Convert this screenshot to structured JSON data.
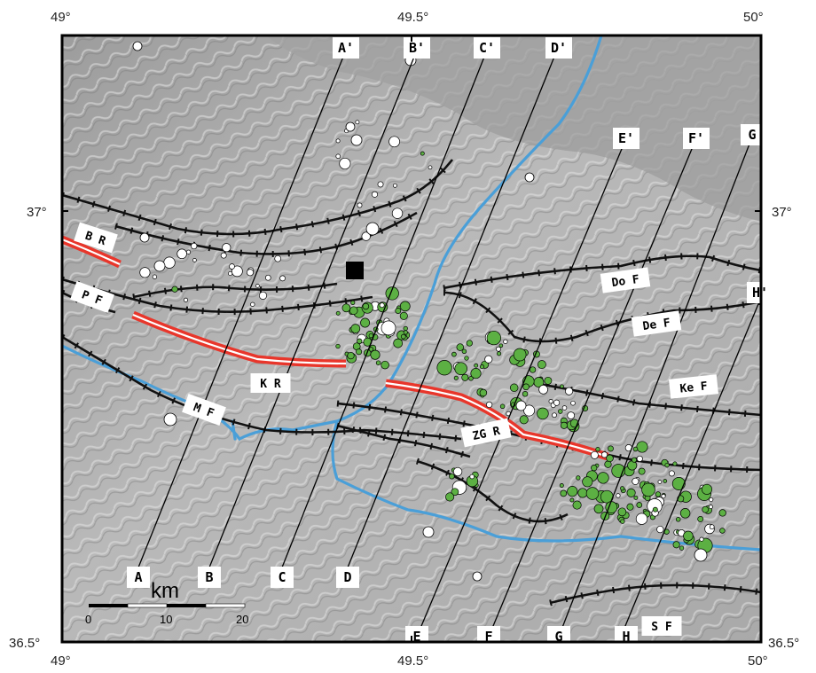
{
  "axes": {
    "x_ticks_top": [
      "49°",
      "49.5°",
      "50°"
    ],
    "x_ticks_bottom": [
      "49°",
      "49.5°",
      "50°"
    ],
    "y_ticks_left": [
      "37°",
      "36.5°"
    ],
    "y_ticks_right": [
      "37°",
      "36.5°"
    ]
  },
  "profiles": [
    {
      "start": "A",
      "end": "A'"
    },
    {
      "start": "B",
      "end": "B'"
    },
    {
      "start": "C",
      "end": "C'"
    },
    {
      "start": "D",
      "end": "D'"
    },
    {
      "start": "E",
      "end": "E'"
    },
    {
      "start": "F",
      "end": "F'"
    },
    {
      "start": "G",
      "end": "G"
    },
    {
      "start": "H",
      "end": "H'"
    }
  ],
  "faults": [
    "B R",
    "P F",
    "M F",
    "K R",
    "ZG R",
    "Do F",
    "De F",
    "Ke F",
    "S F"
  ],
  "scale": {
    "unit": "km",
    "ticks": [
      "0",
      "10",
      "20"
    ]
  },
  "colors": {
    "relief": "#a8a8a8",
    "river": "#4a9fd8",
    "fault": "#111111",
    "red_fault": "#e8362b",
    "quake_green": "#5cb043",
    "quake_white": "#ffffff",
    "station": "#000000"
  }
}
